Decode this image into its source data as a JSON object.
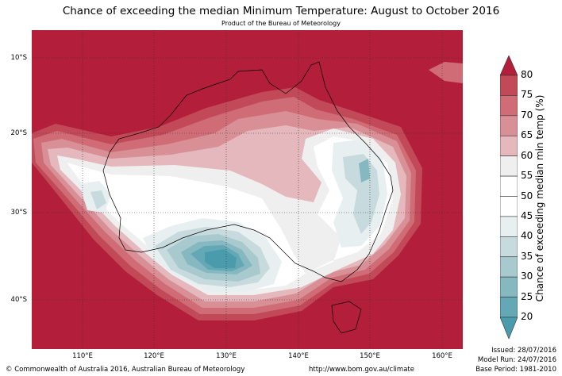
{
  "title": "Chance of exceeding the median Minimum Temperature: August to October 2016",
  "subtitle": "Product of the Bureau of Meteorology",
  "lat_labels": [
    "10°S",
    "20°S",
    "30°S",
    "40°S"
  ],
  "lon_labels": [
    "110°E",
    "120°E",
    "130°E",
    "140°E",
    "150°E",
    "160°E"
  ],
  "colorbar": {
    "label": "Chance of exceeding median min temp (%)",
    "ticks": [
      "80",
      "75",
      "70",
      "65",
      "60",
      "55",
      "50",
      "45",
      "40",
      "35",
      "30",
      "25",
      "20"
    ],
    "colors": [
      "#b31f3a",
      "#c24a58",
      "#cf6c76",
      "#d98f96",
      "#e4b8bc",
      "#efefef",
      "#ffffff",
      "#ffffff",
      "#e8eff1",
      "#c7dadd",
      "#a8c9ce",
      "#86b8c2",
      "#64a8b6",
      "#4a9cad"
    ]
  },
  "footer": {
    "copyright": "© Commonwealth of Australia 2016, Australian Bureau of Meteorology",
    "url": "http://www.bom.gov.au/climate",
    "issued": "Issued: 28/07/2016",
    "model_run": "Model Run: 24/07/2016",
    "base_period": "Base Period: 1981-2010"
  }
}
